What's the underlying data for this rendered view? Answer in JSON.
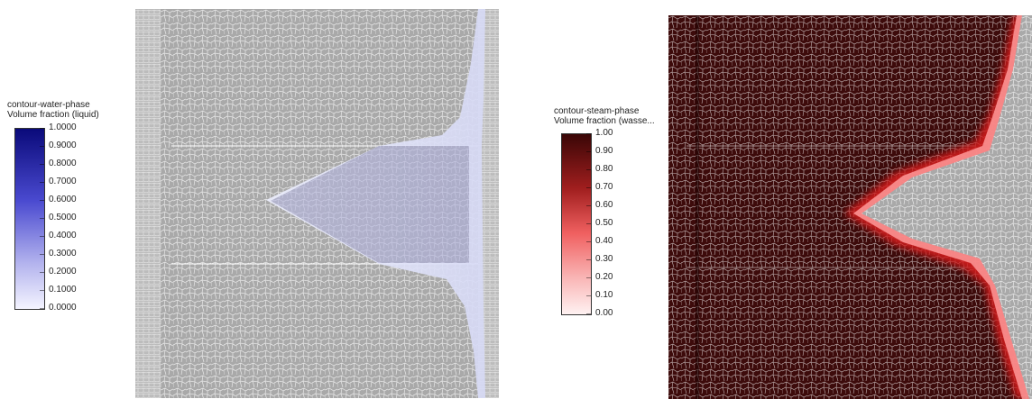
{
  "left_legend": {
    "title_line1": "contour-water-phase",
    "title_line2": "Volume fraction (liquid)",
    "ticks": [
      "1.0000",
      "0.9000",
      "0.8000",
      "0.7000",
      "0.6000",
      "0.5000",
      "0.4000",
      "0.3000",
      "0.2000",
      "0.1000",
      "0.0000"
    ],
    "color_top": "#0a0a7a",
    "color_bottom": "#f4f4ff"
  },
  "right_legend": {
    "title_line1": "contour-steam-phase",
    "title_line2": "Volume fraction (wasse...",
    "ticks": [
      "1.00",
      "0.90",
      "0.80",
      "0.70",
      "0.60",
      "0.50",
      "0.40",
      "0.30",
      "0.20",
      "0.10",
      "0.00"
    ],
    "color_top": "#3a0606",
    "color_mid": "#f06060",
    "color_bottom": "#fff2f2"
  },
  "colors": {
    "mesh_gray": "#a9a9a9",
    "mesh_line": "#ffffff",
    "liquid_tint": "#8f8fc9",
    "steam_dark": "#3a0808",
    "steam_edge": "#d21e1e"
  }
}
